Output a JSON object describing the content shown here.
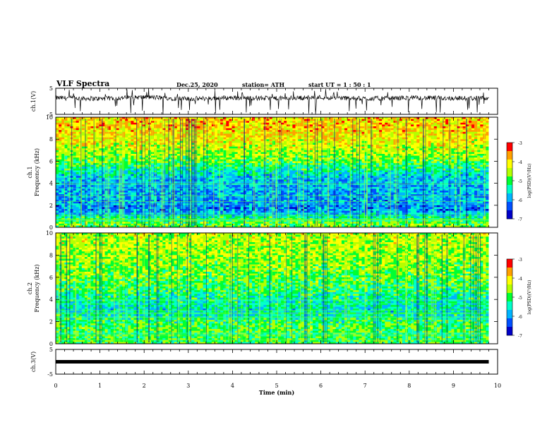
{
  "header": {
    "title": "VLF  Spectra",
    "date": "Dec.25, 2020",
    "station": "station= ATH",
    "start": "start  UT =   1 : 50 : 1"
  },
  "colorscale": {
    "colors": [
      "#000000",
      "#0000c8",
      "#0050ff",
      "#00b4ff",
      "#00ffc8",
      "#00ff32",
      "#b4ff00",
      "#ffff00",
      "#ffa000",
      "#ff0000",
      "#ffffff"
    ],
    "ticks": [
      "-3",
      "-4",
      "-5",
      "-6",
      "-7"
    ],
    "label": "log(PSD)(V²/Hz)"
  },
  "chart_data": [
    {
      "type": "line",
      "name": "ch1-waveform",
      "ylabel": "ch.1(V)",
      "ylim": [
        -5,
        5
      ],
      "yticks": [
        "5",
        "-5"
      ],
      "xlim": [
        0,
        10
      ],
      "baseline": 1.2,
      "trace_end_min": 9.8,
      "x_sample": [
        0,
        1,
        2,
        3,
        4,
        5,
        6,
        7,
        8,
        9,
        9.8
      ],
      "y_sample": [
        1.3,
        1.0,
        1.6,
        0.9,
        1.4,
        1.1,
        1.5,
        1.0,
        1.3,
        1.2,
        1.1
      ]
    },
    {
      "type": "heatmap",
      "name": "ch1-spectrogram",
      "ylabel": "ch.1\nFrequency  (kHz)",
      "ylim": [
        0,
        10
      ],
      "yticks": [
        "10",
        "8",
        "6",
        "4",
        "2",
        "0"
      ],
      "xlim": [
        0,
        10
      ],
      "trace_end_min": 9.8,
      "clim": [
        -7,
        -3
      ],
      "colorbar_label": "log(PSD)(V²/Hz)",
      "frequency_bands_khz": [
        0.5,
        1.5,
        3.0,
        4.5,
        6.0,
        7.5,
        9.0
      ],
      "band_levels": [
        -4.8,
        -6.2,
        -6.0,
        -5.9,
        -4.8,
        -4.2,
        -3.8
      ]
    },
    {
      "type": "heatmap",
      "name": "ch2-spectrogram",
      "ylabel": "ch.2\nFrequency  (kHz)",
      "ylim": [
        0,
        10
      ],
      "yticks": [
        "10",
        "8",
        "6",
        "4",
        "2",
        "0"
      ],
      "xlim": [
        0,
        10
      ],
      "trace_end_min": 9.8,
      "clim": [
        -7,
        -3
      ],
      "colorbar_label": "log(PSD)(V²/Hz)",
      "frequency_bands_khz": [
        0.5,
        1.5,
        3.0,
        4.5,
        6.0,
        7.5,
        9.0
      ],
      "band_levels": [
        -5.0,
        -4.9,
        -5.6,
        -5.2,
        -4.8,
        -4.6,
        -4.4
      ]
    },
    {
      "type": "line",
      "name": "ch3-waveform",
      "ylabel": "ch.3(V)",
      "ylim": [
        -5,
        5
      ],
      "yticks": [
        "5",
        "-5"
      ],
      "xlim": [
        0,
        10
      ],
      "xticks": [
        "0",
        "1",
        "2",
        "3",
        "4",
        "5",
        "6",
        "7",
        "8",
        "9",
        "10"
      ],
      "xlabel": "Time  (min)",
      "baseline": 0,
      "trace_end_min": 9.8
    }
  ]
}
